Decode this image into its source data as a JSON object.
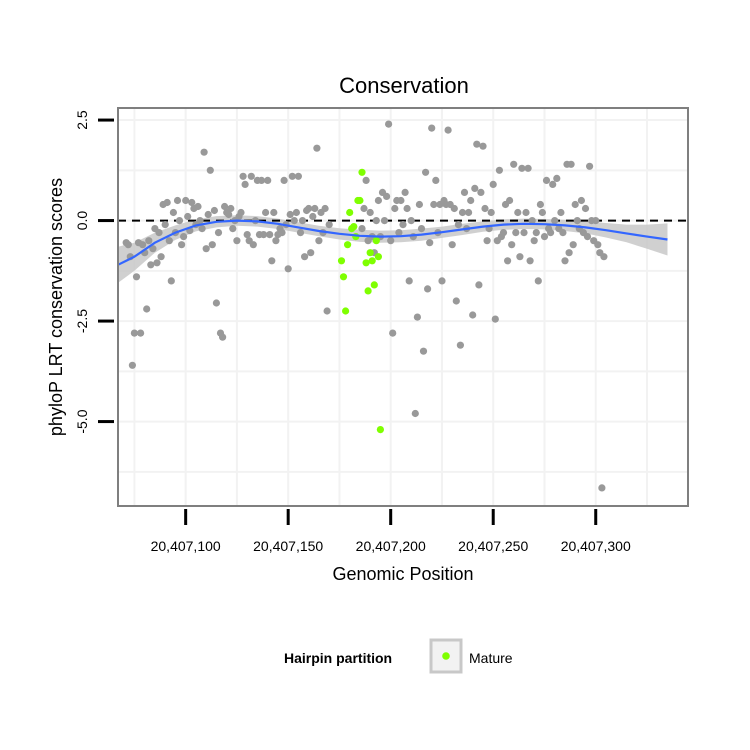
{
  "chart_data": {
    "type": "scatter",
    "title": "Conservation",
    "xlabel": "Genomic Position",
    "ylabel": "phyloP LRT conservation scores",
    "xlim": [
      20407067,
      20407345
    ],
    "ylim": [
      -7.1,
      2.8
    ],
    "x_ticks": [
      20407100,
      20407150,
      20407200,
      20407250,
      20407300
    ],
    "x_tick_labels": [
      "20,407,100",
      "20,407,150",
      "20,407,200",
      "20,407,250",
      "20,407,300"
    ],
    "y_ticks": [
      2.5,
      0,
      -2.5,
      -5
    ],
    "y_tick_labels": [
      "2.5",
      "0.0",
      "-2.5",
      "-5.0"
    ],
    "reference_line": {
      "y": 0,
      "style": "dashed"
    },
    "grid": true,
    "legend": {
      "title": "Hairpin partition",
      "placement": "bottom",
      "entries": [
        {
          "label": "Mature",
          "color": "#7fff00"
        }
      ]
    },
    "colors": {
      "other_points": "#999999",
      "mature_points": "#7fff00",
      "smooth_line": "#3366ff",
      "confidence_band": "#c8c8c8",
      "panel_border": "#7f7f7f",
      "grid": "#f2f2f2"
    },
    "series": [
      {
        "name": "Other",
        "points": [
          [
            20407071,
            -0.55
          ],
          [
            20407072,
            -0.6
          ],
          [
            20407073,
            -0.9
          ],
          [
            20407074,
            -3.6
          ],
          [
            20407075,
            -2.8
          ],
          [
            20407076,
            -1.4
          ],
          [
            20407077,
            -0.55
          ],
          [
            20407078,
            -2.8
          ],
          [
            20407079,
            -0.6
          ],
          [
            20407080,
            -0.8
          ],
          [
            20407081,
            -2.2
          ],
          [
            20407082,
            -0.5
          ],
          [
            20407083,
            -1.1
          ],
          [
            20407084,
            -0.7
          ],
          [
            20407085,
            -0.2
          ],
          [
            20407086,
            -1.05
          ],
          [
            20407087,
            -0.3
          ],
          [
            20407088,
            -0.9
          ],
          [
            20407089,
            0.4
          ],
          [
            20407090,
            -0.1
          ],
          [
            20407091,
            0.45
          ],
          [
            20407092,
            -0.5
          ],
          [
            20407093,
            -1.5
          ],
          [
            20407094,
            0.2
          ],
          [
            20407095,
            -0.3
          ],
          [
            20407096,
            0.5
          ],
          [
            20407097,
            0.0
          ],
          [
            20407098,
            -0.6
          ],
          [
            20407099,
            -0.4
          ],
          [
            20407100,
            0.5
          ],
          [
            20407101,
            0.1
          ],
          [
            20407102,
            -0.25
          ],
          [
            20407103,
            0.45
          ],
          [
            20407104,
            0.3
          ],
          [
            20407105,
            -0.1
          ],
          [
            20407106,
            0.35
          ],
          [
            20407107,
            0.0
          ],
          [
            20407108,
            -0.2
          ],
          [
            20407109,
            1.7
          ],
          [
            20407110,
            -0.7
          ],
          [
            20407111,
            0.15
          ],
          [
            20407112,
            1.25
          ],
          [
            20407113,
            -0.6
          ],
          [
            20407114,
            0.25
          ],
          [
            20407115,
            -2.05
          ],
          [
            20407116,
            -0.3
          ],
          [
            20407117,
            -2.8
          ],
          [
            20407118,
            -2.9
          ],
          [
            20407119,
            0.35
          ],
          [
            20407120,
            0.2
          ],
          [
            20407121,
            0.15
          ],
          [
            20407122,
            0.3
          ],
          [
            20407123,
            -0.2
          ],
          [
            20407124,
            0.0
          ],
          [
            20407125,
            -0.5
          ],
          [
            20407126,
            0.1
          ],
          [
            20407127,
            0.2
          ],
          [
            20407128,
            1.1
          ],
          [
            20407129,
            0.9
          ],
          [
            20407130,
            -0.35
          ],
          [
            20407131,
            -0.5
          ],
          [
            20407132,
            1.1
          ],
          [
            20407133,
            -0.6
          ],
          [
            20407134,
            0.0
          ],
          [
            20407135,
            1.0
          ],
          [
            20407136,
            -0.35
          ],
          [
            20407137,
            1.0
          ],
          [
            20407138,
            -0.35
          ],
          [
            20407139,
            0.2
          ],
          [
            20407140,
            1.0
          ],
          [
            20407141,
            -0.35
          ],
          [
            20407142,
            -1.0
          ],
          [
            20407143,
            0.2
          ],
          [
            20407144,
            -0.5
          ],
          [
            20407145,
            -0.35
          ],
          [
            20407146,
            -0.2
          ],
          [
            20407147,
            -0.3
          ],
          [
            20407148,
            1.0
          ],
          [
            20407149,
            -0.1
          ],
          [
            20407150,
            -1.2
          ],
          [
            20407151,
            0.15
          ],
          [
            20407152,
            1.1
          ],
          [
            20407153,
            0.0
          ],
          [
            20407154,
            0.2
          ],
          [
            20407155,
            1.1
          ],
          [
            20407156,
            -0.3
          ],
          [
            20407157,
            0.0
          ],
          [
            20407158,
            -0.9
          ],
          [
            20407159,
            0.25
          ],
          [
            20407160,
            0.3
          ],
          [
            20407161,
            -0.8
          ],
          [
            20407162,
            0.1
          ],
          [
            20407163,
            0.3
          ],
          [
            20407164,
            1.8
          ],
          [
            20407165,
            -0.5
          ],
          [
            20407166,
            0.2
          ],
          [
            20407167,
            -0.3
          ],
          [
            20407168,
            0.3
          ],
          [
            20407169,
            -2.25
          ],
          [
            20407170,
            -0.1
          ],
          [
            20407186,
            -0.2
          ],
          [
            20407187,
            0.3
          ],
          [
            20407188,
            1.0
          ],
          [
            20407189,
            -0.5
          ],
          [
            20407190,
            0.2
          ],
          [
            20407191,
            -0.4
          ],
          [
            20407192,
            -0.8
          ],
          [
            20407193,
            0.0
          ],
          [
            20407194,
            0.5
          ],
          [
            20407195,
            -0.4
          ],
          [
            20407196,
            0.7
          ],
          [
            20407197,
            0.0
          ],
          [
            20407198,
            0.6
          ],
          [
            20407199,
            2.4
          ],
          [
            20407200,
            -0.5
          ],
          [
            20407201,
            -2.8
          ],
          [
            20407202,
            0.3
          ],
          [
            20407203,
            0.5
          ],
          [
            20407204,
            -0.3
          ],
          [
            20407205,
            0.5
          ],
          [
            20407206,
            -0.1
          ],
          [
            20407207,
            0.7
          ],
          [
            20407208,
            0.3
          ],
          [
            20407209,
            -1.5
          ],
          [
            20407210,
            0.0
          ],
          [
            20407211,
            -0.4
          ],
          [
            20407212,
            -4.8
          ],
          [
            20407213,
            -2.4
          ],
          [
            20407214,
            0.4
          ],
          [
            20407215,
            -0.2
          ],
          [
            20407216,
            -3.25
          ],
          [
            20407217,
            1.2
          ],
          [
            20407218,
            -1.7
          ],
          [
            20407219,
            -0.55
          ],
          [
            20407220,
            2.3
          ],
          [
            20407221,
            0.4
          ],
          [
            20407222,
            1.0
          ],
          [
            20407223,
            -0.3
          ],
          [
            20407224,
            0.4
          ],
          [
            20407225,
            -1.5
          ],
          [
            20407226,
            0.5
          ],
          [
            20407227,
            0.4
          ],
          [
            20407228,
            2.25
          ],
          [
            20407229,
            0.4
          ],
          [
            20407230,
            -0.6
          ],
          [
            20407231,
            0.3
          ],
          [
            20407232,
            -2.0
          ],
          [
            20407233,
            -0.1
          ],
          [
            20407234,
            -3.1
          ],
          [
            20407235,
            0.2
          ],
          [
            20407236,
            0.7
          ],
          [
            20407237,
            -0.2
          ],
          [
            20407238,
            0.2
          ],
          [
            20407239,
            0.5
          ],
          [
            20407240,
            -2.35
          ],
          [
            20407241,
            0.8
          ],
          [
            20407242,
            1.9
          ],
          [
            20407243,
            -1.6
          ],
          [
            20407244,
            0.7
          ],
          [
            20407245,
            1.85
          ],
          [
            20407246,
            0.3
          ],
          [
            20407247,
            -0.5
          ],
          [
            20407248,
            -0.2
          ],
          [
            20407249,
            0.2
          ],
          [
            20407250,
            0.9
          ],
          [
            20407251,
            -2.45
          ],
          [
            20407252,
            -0.5
          ],
          [
            20407253,
            1.25
          ],
          [
            20407254,
            -0.4
          ],
          [
            20407255,
            -0.3
          ],
          [
            20407256,
            0.4
          ],
          [
            20407257,
            -1.0
          ],
          [
            20407258,
            0.5
          ],
          [
            20407259,
            -0.6
          ],
          [
            20407260,
            1.4
          ],
          [
            20407261,
            -0.3
          ],
          [
            20407262,
            0.2
          ],
          [
            20407263,
            -0.9
          ],
          [
            20407264,
            1.3
          ],
          [
            20407265,
            -0.3
          ],
          [
            20407266,
            0.2
          ],
          [
            20407267,
            1.3
          ],
          [
            20407268,
            -1.0
          ],
          [
            20407269,
            0.0
          ],
          [
            20407270,
            -0.5
          ],
          [
            20407271,
            -0.3
          ],
          [
            20407272,
            -1.5
          ],
          [
            20407273,
            0.4
          ],
          [
            20407274,
            0.2
          ],
          [
            20407275,
            -0.4
          ],
          [
            20407276,
            1.0
          ],
          [
            20407277,
            -0.2
          ],
          [
            20407278,
            -0.3
          ],
          [
            20407279,
            0.9
          ],
          [
            20407280,
            0.0
          ],
          [
            20407281,
            1.05
          ],
          [
            20407282,
            -0.2
          ],
          [
            20407283,
            0.2
          ],
          [
            20407284,
            -0.3
          ],
          [
            20407285,
            -1.0
          ],
          [
            20407286,
            1.4
          ],
          [
            20407287,
            -0.8
          ],
          [
            20407288,
            1.4
          ],
          [
            20407289,
            -0.6
          ],
          [
            20407290,
            0.4
          ],
          [
            20407291,
            0.0
          ],
          [
            20407292,
            -0.2
          ],
          [
            20407293,
            0.5
          ],
          [
            20407294,
            -0.3
          ],
          [
            20407295,
            0.3
          ],
          [
            20407296,
            -0.4
          ],
          [
            20407297,
            1.35
          ],
          [
            20407298,
            0.0
          ],
          [
            20407299,
            -0.5
          ],
          [
            20407300,
            0.0
          ],
          [
            20407301,
            -0.6
          ],
          [
            20407302,
            -0.8
          ],
          [
            20407303,
            -6.65
          ],
          [
            20407304,
            -0.9
          ]
        ]
      },
      {
        "name": "Mature",
        "points": [
          [
            20407176,
            -1.0
          ],
          [
            20407177,
            -1.4
          ],
          [
            20407178,
            -2.25
          ],
          [
            20407179,
            -0.6
          ],
          [
            20407180,
            0.2
          ],
          [
            20407181,
            -0.2
          ],
          [
            20407182,
            -0.15
          ],
          [
            20407183,
            -0.4
          ],
          [
            20407184,
            0.5
          ],
          [
            20407185,
            0.5
          ],
          [
            20407186,
            1.2
          ],
          [
            20407188,
            -1.05
          ],
          [
            20407189,
            -1.75
          ],
          [
            20407190,
            -0.8
          ],
          [
            20407191,
            -1.0
          ],
          [
            20407192,
            -1.6
          ],
          [
            20407193,
            -0.5
          ],
          [
            20407194,
            -0.9
          ],
          [
            20407195,
            -5.2
          ]
        ]
      }
    ],
    "smooth_curve": [
      [
        20407067,
        -1.1
      ],
      [
        20407075,
        -0.9
      ],
      [
        20407085,
        -0.55
      ],
      [
        20407095,
        -0.3
      ],
      [
        20407105,
        -0.12
      ],
      [
        20407115,
        -0.03
      ],
      [
        20407125,
        0.0
      ],
      [
        20407135,
        -0.02
      ],
      [
        20407145,
        -0.08
      ],
      [
        20407155,
        -0.17
      ],
      [
        20407165,
        -0.26
      ],
      [
        20407175,
        -0.33
      ],
      [
        20407185,
        -0.38
      ],
      [
        20407195,
        -0.4
      ],
      [
        20407205,
        -0.39
      ],
      [
        20407215,
        -0.35
      ],
      [
        20407225,
        -0.29
      ],
      [
        20407235,
        -0.22
      ],
      [
        20407245,
        -0.15
      ],
      [
        20407255,
        -0.1
      ],
      [
        20407265,
        -0.08
      ],
      [
        20407275,
        -0.09
      ],
      [
        20407285,
        -0.12
      ],
      [
        20407295,
        -0.17
      ],
      [
        20407305,
        -0.24
      ],
      [
        20407315,
        -0.32
      ],
      [
        20407325,
        -0.4
      ],
      [
        20407335,
        -0.47
      ]
    ],
    "band_halfwidth": [
      0.45,
      0.35,
      0.25,
      0.18,
      0.15,
      0.14,
      0.13,
      0.13,
      0.13,
      0.13,
      0.13,
      0.14,
      0.15,
      0.15,
      0.15,
      0.15,
      0.14,
      0.14,
      0.13,
      0.13,
      0.13,
      0.13,
      0.14,
      0.15,
      0.18,
      0.22,
      0.3,
      0.4
    ]
  }
}
